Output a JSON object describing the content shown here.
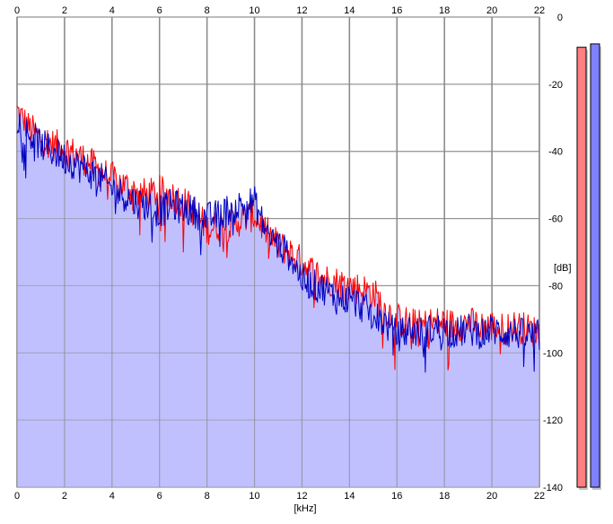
{
  "chart_data": {
    "type": "area",
    "title": "",
    "xlabel": "[kHz]",
    "ylabel": "[dB]",
    "xlim": [
      0,
      22
    ],
    "ylim": [
      -140,
      0
    ],
    "x_ticks": [
      0,
      2,
      4,
      6,
      8,
      10,
      12,
      14,
      16,
      18,
      20,
      22
    ],
    "y_ticks": [
      0,
      -20,
      -40,
      -60,
      -80,
      -100,
      -120,
      -140
    ],
    "x_tick_labels": [
      "0",
      "2",
      "4",
      "6",
      "8",
      "10",
      "12",
      "14",
      "16",
      "18",
      "20",
      "22"
    ],
    "y_tick_labels": [
      "0",
      "-20",
      "-40",
      "-60",
      "-80",
      "-100",
      "-120",
      "-140"
    ],
    "grid": true,
    "series": [
      {
        "color": "#ff0000",
        "x": [
          0,
          0.5,
          1,
          1.5,
          2,
          2.5,
          3,
          3.5,
          4,
          4.5,
          5,
          5.5,
          6,
          6.5,
          7,
          7.5,
          8,
          8.5,
          9,
          9.5,
          10,
          10.5,
          11,
          11.5,
          12,
          12.5,
          13,
          13.5,
          14,
          14.5,
          15,
          15.5,
          16,
          16.5,
          17,
          17.5,
          18,
          18.5,
          19,
          19.5,
          20,
          20.5,
          21,
          21.5,
          22
        ],
        "values": [
          -28,
          -33,
          -36,
          -38,
          -39,
          -41,
          -43,
          -46,
          -48,
          -50,
          -52,
          -53,
          -52,
          -53,
          -55,
          -58,
          -63,
          -62,
          -62,
          -60,
          -59,
          -64,
          -68,
          -70,
          -73,
          -76,
          -78,
          -79,
          -80,
          -81,
          -82,
          -87,
          -90,
          -91,
          -92,
          -91,
          -91,
          -92,
          -91,
          -92,
          -92,
          -93,
          -92,
          -93,
          -94
        ]
      },
      {
        "color": "#0000c0",
        "x": [
          0,
          0.5,
          1,
          1.5,
          2,
          2.5,
          3,
          3.5,
          4,
          4.5,
          5,
          5.5,
          6,
          6.5,
          7,
          7.5,
          8,
          8.5,
          9,
          9.5,
          10,
          10.5,
          11,
          11.5,
          12,
          12.5,
          13,
          13.5,
          14,
          14.5,
          15,
          15.5,
          16,
          16.5,
          17,
          17.5,
          18,
          18.5,
          19,
          19.5,
          20,
          20.5,
          21,
          21.5,
          22
        ],
        "values": [
          -30,
          -35,
          -38,
          -40,
          -42,
          -44,
          -46,
          -48,
          -51,
          -53,
          -55,
          -56,
          -58,
          -56,
          -57,
          -58,
          -60,
          -59,
          -57,
          -56,
          -55,
          -64,
          -68,
          -71,
          -78,
          -80,
          -81,
          -84,
          -84,
          -86,
          -89,
          -91,
          -95,
          -93,
          -94,
          -93,
          -93,
          -94,
          -93,
          -94,
          -93,
          -94,
          -94,
          -95,
          -95
        ]
      }
    ],
    "fill_color": "#c0c0ff",
    "level_meters": [
      {
        "color": "#ff8080",
        "level_db": -9
      },
      {
        "color": "#8080ff",
        "level_db": -8
      }
    ]
  }
}
